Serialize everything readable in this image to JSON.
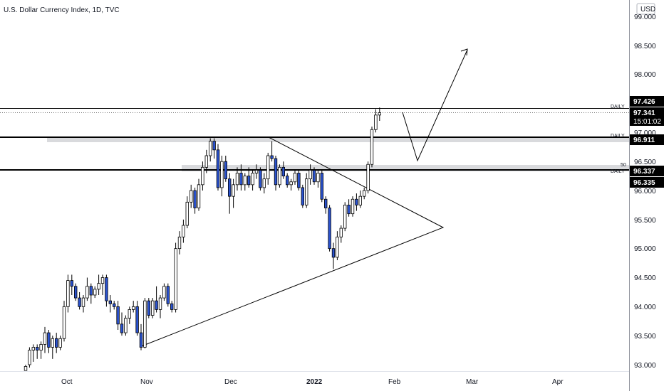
{
  "header": {
    "title": "U.S. Dollar Currency Index, 1D, TVC"
  },
  "currency_badge": "USD",
  "price_scale": {
    "ticks": [
      "99.000",
      "98.500",
      "98.000",
      "96.500",
      "96.000",
      "95.500",
      "95.000",
      "94.500",
      "94.000",
      "93.500",
      "93.000"
    ],
    "partial_label": "97.000",
    "tags": {
      "top_level": "97.426",
      "last_price": "97.341",
      "countdown": "15:01:02",
      "mid_level": "96.911",
      "lower_level_a": "96.337",
      "lower_level_b": "96.335"
    }
  },
  "time_axis": {
    "labels": [
      "Oct",
      "Nov",
      "Dec",
      "2022",
      "Feb",
      "Mar",
      "Apr"
    ]
  },
  "annotations": {
    "daily": "DAILY",
    "fifty": "50"
  },
  "colors": {
    "up": "#ffffff",
    "down": "#2b53cf",
    "outline": "#000000",
    "zone": "#d9dadd",
    "tag_bg": "#000000"
  },
  "chart_data": {
    "type": "candlestick",
    "title": "U.S. Dollar Currency Index, 1D, TVC",
    "ylim": [
      92.9,
      99.3
    ],
    "x_labels": [
      "Oct",
      "Nov",
      "Dec",
      "2022",
      "Feb",
      "Mar",
      "Apr"
    ],
    "horizontal_levels": [
      97.426,
      96.911,
      96.337
    ],
    "last_price": 97.341,
    "candles": [
      [
        92.9,
        93.0,
        92.9,
        92.97
      ],
      [
        93.0,
        93.3,
        92.95,
        93.25
      ],
      [
        93.25,
        93.35,
        93.05,
        93.3
      ],
      [
        93.3,
        93.35,
        93.1,
        93.25
      ],
      [
        93.25,
        93.4,
        93.1,
        93.35
      ],
      [
        93.35,
        93.65,
        93.2,
        93.55
      ],
      [
        93.55,
        93.6,
        93.2,
        93.3
      ],
      [
        93.3,
        93.5,
        93.1,
        93.45
      ],
      [
        93.45,
        93.55,
        93.2,
        93.3
      ],
      [
        93.3,
        93.5,
        93.25,
        93.45
      ],
      [
        93.45,
        94.1,
        93.4,
        94.0
      ],
      [
        94.0,
        94.55,
        93.9,
        94.45
      ],
      [
        94.45,
        94.55,
        94.2,
        94.35
      ],
      [
        94.35,
        94.4,
        94.1,
        94.15
      ],
      [
        94.15,
        94.25,
        93.95,
        94.0
      ],
      [
        94.0,
        94.2,
        93.9,
        94.15
      ],
      [
        94.15,
        94.5,
        94.1,
        94.35
      ],
      [
        94.35,
        94.4,
        94.05,
        94.2
      ],
      [
        94.2,
        94.35,
        94.15,
        94.3
      ],
      [
        94.3,
        94.55,
        94.2,
        94.4
      ],
      [
        94.4,
        94.55,
        94.2,
        94.5
      ],
      [
        94.5,
        94.55,
        94.0,
        94.1
      ],
      [
        94.1,
        94.2,
        93.9,
        94.05
      ],
      [
        94.05,
        94.1,
        93.95,
        94.0
      ],
      [
        94.0,
        94.1,
        93.6,
        93.7
      ],
      [
        93.7,
        93.9,
        93.5,
        93.55
      ],
      [
        93.55,
        93.85,
        93.5,
        93.8
      ],
      [
        93.8,
        94.0,
        93.7,
        93.95
      ],
      [
        93.95,
        94.1,
        93.9,
        94.0
      ],
      [
        94.0,
        94.1,
        93.5,
        93.55
      ],
      [
        93.55,
        93.7,
        93.25,
        93.3
      ],
      [
        93.3,
        94.15,
        93.28,
        94.1
      ],
      [
        94.1,
        94.15,
        93.8,
        93.85
      ],
      [
        93.85,
        94.15,
        93.8,
        94.1
      ],
      [
        94.1,
        94.35,
        93.9,
        93.95
      ],
      [
        93.95,
        94.2,
        93.8,
        94.15
      ],
      [
        94.15,
        94.4,
        94.1,
        94.35
      ],
      [
        94.35,
        94.4,
        94.0,
        94.05
      ],
      [
        94.05,
        94.1,
        93.9,
        93.95
      ],
      [
        93.95,
        95.1,
        93.9,
        95.0
      ],
      [
        95.0,
        95.3,
        94.9,
        95.2
      ],
      [
        95.2,
        95.5,
        95.1,
        95.4
      ],
      [
        95.4,
        95.9,
        95.35,
        95.8
      ],
      [
        95.8,
        96.1,
        95.7,
        96.0
      ],
      [
        96.0,
        96.05,
        95.6,
        95.7
      ],
      [
        95.7,
        96.2,
        95.65,
        96.1
      ],
      [
        96.1,
        96.5,
        96.0,
        96.4
      ],
      [
        96.4,
        96.7,
        96.3,
        96.6
      ],
      [
        96.6,
        96.9,
        96.5,
        96.85
      ],
      [
        96.85,
        96.9,
        96.55,
        96.7
      ],
      [
        96.7,
        96.8,
        96.0,
        96.05
      ],
      [
        96.05,
        96.6,
        95.9,
        96.5
      ],
      [
        96.5,
        96.6,
        96.15,
        96.2
      ],
      [
        96.2,
        96.3,
        95.6,
        95.9
      ],
      [
        95.9,
        96.2,
        95.7,
        96.1
      ],
      [
        96.1,
        96.4,
        96.0,
        96.3
      ],
      [
        96.3,
        96.45,
        96.0,
        96.1
      ],
      [
        96.1,
        96.3,
        96.0,
        96.25
      ],
      [
        96.25,
        96.4,
        96.05,
        96.1
      ],
      [
        96.1,
        96.35,
        96.0,
        96.3
      ],
      [
        96.3,
        96.45,
        96.2,
        96.35
      ],
      [
        96.35,
        96.4,
        96.0,
        96.05
      ],
      [
        96.05,
        96.3,
        95.95,
        96.2
      ],
      [
        96.2,
        96.65,
        96.1,
        96.6
      ],
      [
        96.6,
        96.85,
        96.5,
        96.55
      ],
      [
        96.55,
        96.6,
        96.0,
        96.1
      ],
      [
        96.1,
        96.45,
        96.05,
        96.4
      ],
      [
        96.4,
        96.5,
        96.2,
        96.25
      ],
      [
        96.25,
        96.3,
        96.05,
        96.1
      ],
      [
        96.1,
        96.2,
        96.0,
        96.15
      ],
      [
        96.15,
        96.35,
        96.1,
        96.3
      ],
      [
        96.3,
        96.35,
        96.0,
        96.05
      ],
      [
        96.05,
        96.1,
        95.7,
        95.75
      ],
      [
        95.75,
        96.3,
        95.7,
        96.2
      ],
      [
        96.2,
        96.45,
        96.1,
        96.35
      ],
      [
        96.35,
        96.4,
        96.1,
        96.15
      ],
      [
        96.15,
        96.35,
        96.05,
        96.3
      ],
      [
        96.3,
        96.35,
        95.8,
        95.85
      ],
      [
        95.85,
        95.9,
        95.6,
        95.7
      ],
      [
        95.7,
        95.75,
        94.95,
        95.0
      ],
      [
        95.0,
        95.1,
        94.65,
        94.85
      ],
      [
        94.85,
        95.3,
        94.8,
        95.2
      ],
      [
        95.2,
        95.4,
        95.1,
        95.35
      ],
      [
        95.35,
        95.8,
        95.3,
        95.75
      ],
      [
        95.75,
        95.85,
        95.55,
        95.6
      ],
      [
        95.6,
        95.9,
        95.55,
        95.85
      ],
      [
        95.85,
        95.95,
        95.65,
        95.75
      ],
      [
        95.75,
        96.0,
        95.7,
        95.9
      ],
      [
        95.9,
        96.05,
        95.85,
        96.0
      ],
      [
        96.0,
        96.5,
        95.95,
        96.45
      ],
      [
        96.45,
        97.1,
        96.4,
        97.05
      ],
      [
        97.05,
        97.4,
        97.0,
        97.3
      ],
      [
        97.3,
        97.43,
        97.2,
        97.341
      ]
    ]
  }
}
